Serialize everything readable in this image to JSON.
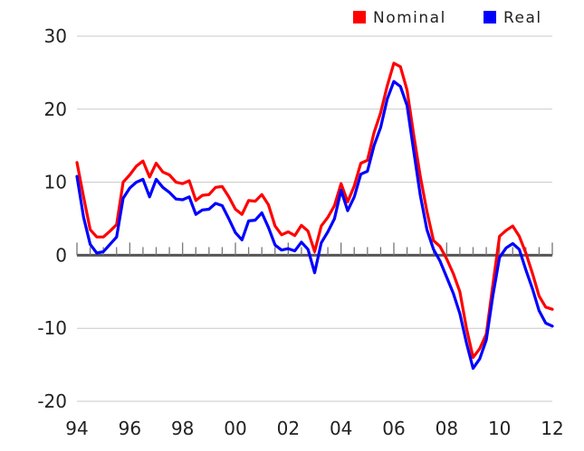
{
  "chart_data": {
    "type": "line",
    "title": "",
    "xlabel": "",
    "ylabel": "",
    "xlim": [
      1994,
      2012
    ],
    "ylim": [
      -20,
      30
    ],
    "yticks": [
      30,
      20,
      10,
      0,
      -10,
      -20
    ],
    "xticks": [
      {
        "value": 1994,
        "label": "94"
      },
      {
        "value": 1996,
        "label": "96"
      },
      {
        "value": 1998,
        "label": "98"
      },
      {
        "value": 2000,
        "label": "00"
      },
      {
        "value": 2002,
        "label": "02"
      },
      {
        "value": 2004,
        "label": "04"
      },
      {
        "value": 2006,
        "label": "06"
      },
      {
        "value": 2008,
        "label": "08"
      },
      {
        "value": 2010,
        "label": "10"
      },
      {
        "value": 2012,
        "label": "12"
      }
    ],
    "grid": "horizontal",
    "legend_position": "top-right",
    "series": [
      {
        "name": "Nominal",
        "color": "#ff0000",
        "points": [
          [
            1994.0,
            12.7
          ],
          [
            1994.25,
            8.0
          ],
          [
            1994.5,
            3.5
          ],
          [
            1994.75,
            2.5
          ],
          [
            1995.0,
            2.5
          ],
          [
            1995.25,
            3.3
          ],
          [
            1995.5,
            4.2
          ],
          [
            1995.75,
            10.0
          ],
          [
            1996.0,
            11.0
          ],
          [
            1996.25,
            12.2
          ],
          [
            1996.5,
            12.9
          ],
          [
            1996.75,
            10.7
          ],
          [
            1997.0,
            12.6
          ],
          [
            1997.25,
            11.4
          ],
          [
            1997.5,
            11.0
          ],
          [
            1997.75,
            10.0
          ],
          [
            1998.0,
            9.8
          ],
          [
            1998.25,
            10.2
          ],
          [
            1998.5,
            7.5
          ],
          [
            1998.75,
            8.2
          ],
          [
            1999.0,
            8.3
          ],
          [
            1999.25,
            9.3
          ],
          [
            1999.5,
            9.4
          ],
          [
            1999.75,
            8.0
          ],
          [
            2000.0,
            6.3
          ],
          [
            2000.25,
            5.6
          ],
          [
            2000.5,
            7.5
          ],
          [
            2000.75,
            7.4
          ],
          [
            2001.0,
            8.3
          ],
          [
            2001.25,
            6.9
          ],
          [
            2001.5,
            4.0
          ],
          [
            2001.75,
            2.8
          ],
          [
            2002.0,
            3.2
          ],
          [
            2002.25,
            2.7
          ],
          [
            2002.5,
            4.1
          ],
          [
            2002.75,
            3.3
          ],
          [
            2003.0,
            0.5
          ],
          [
            2003.25,
            4.0
          ],
          [
            2003.5,
            5.2
          ],
          [
            2003.75,
            6.8
          ],
          [
            2004.0,
            9.8
          ],
          [
            2004.25,
            7.3
          ],
          [
            2004.5,
            9.5
          ],
          [
            2004.75,
            12.6
          ],
          [
            2005.0,
            13.0
          ],
          [
            2005.25,
            16.8
          ],
          [
            2005.5,
            19.5
          ],
          [
            2005.75,
            23.2
          ],
          [
            2006.0,
            26.3
          ],
          [
            2006.25,
            25.8
          ],
          [
            2006.5,
            22.6
          ],
          [
            2006.75,
            16.5
          ],
          [
            2007.0,
            10.8
          ],
          [
            2007.25,
            6.0
          ],
          [
            2007.5,
            2.0
          ],
          [
            2007.75,
            1.2
          ],
          [
            2008.0,
            -0.5
          ],
          [
            2008.25,
            -2.5
          ],
          [
            2008.5,
            -5.0
          ],
          [
            2008.75,
            -10.0
          ],
          [
            2009.0,
            -14.0
          ],
          [
            2009.25,
            -12.8
          ],
          [
            2009.5,
            -10.8
          ],
          [
            2009.75,
            -4.0
          ],
          [
            2010.0,
            2.6
          ],
          [
            2010.25,
            3.4
          ],
          [
            2010.5,
            4.0
          ],
          [
            2010.75,
            2.6
          ],
          [
            2011.0,
            0.3
          ],
          [
            2011.25,
            -2.5
          ],
          [
            2011.5,
            -5.6
          ],
          [
            2011.75,
            -7.1
          ],
          [
            2012.0,
            -7.4
          ]
        ]
      },
      {
        "name": "Real",
        "color": "#0000ff",
        "points": [
          [
            1994.0,
            10.8
          ],
          [
            1994.25,
            5.2
          ],
          [
            1994.5,
            1.5
          ],
          [
            1994.75,
            0.3
          ],
          [
            1995.0,
            0.5
          ],
          [
            1995.25,
            1.5
          ],
          [
            1995.5,
            2.5
          ],
          [
            1995.75,
            7.8
          ],
          [
            1996.0,
            9.2
          ],
          [
            1996.25,
            10.0
          ],
          [
            1996.5,
            10.4
          ],
          [
            1996.75,
            8.0
          ],
          [
            1997.0,
            10.4
          ],
          [
            1997.25,
            9.3
          ],
          [
            1997.5,
            8.6
          ],
          [
            1997.75,
            7.7
          ],
          [
            1998.0,
            7.6
          ],
          [
            1998.25,
            8.0
          ],
          [
            1998.5,
            5.6
          ],
          [
            1998.75,
            6.2
          ],
          [
            1999.0,
            6.3
          ],
          [
            1999.25,
            7.1
          ],
          [
            1999.5,
            6.8
          ],
          [
            1999.75,
            5.0
          ],
          [
            2000.0,
            3.1
          ],
          [
            2000.25,
            2.1
          ],
          [
            2000.5,
            4.7
          ],
          [
            2000.75,
            4.8
          ],
          [
            2001.0,
            5.8
          ],
          [
            2001.25,
            3.8
          ],
          [
            2001.5,
            1.4
          ],
          [
            2001.75,
            0.7
          ],
          [
            2002.0,
            0.9
          ],
          [
            2002.25,
            0.6
          ],
          [
            2002.5,
            1.8
          ],
          [
            2002.75,
            0.8
          ],
          [
            2003.0,
            -2.4
          ],
          [
            2003.25,
            1.7
          ],
          [
            2003.5,
            3.2
          ],
          [
            2003.75,
            5.0
          ],
          [
            2004.0,
            8.9
          ],
          [
            2004.25,
            6.1
          ],
          [
            2004.5,
            8.0
          ],
          [
            2004.75,
            11.1
          ],
          [
            2005.0,
            11.5
          ],
          [
            2005.25,
            15.0
          ],
          [
            2005.5,
            17.5
          ],
          [
            2005.75,
            21.4
          ],
          [
            2006.0,
            23.8
          ],
          [
            2006.25,
            23.1
          ],
          [
            2006.5,
            20.5
          ],
          [
            2006.75,
            14.3
          ],
          [
            2007.0,
            8.2
          ],
          [
            2007.25,
            3.5
          ],
          [
            2007.5,
            0.8
          ],
          [
            2007.75,
            -0.8
          ],
          [
            2008.0,
            -3.0
          ],
          [
            2008.25,
            -5.2
          ],
          [
            2008.5,
            -8.0
          ],
          [
            2008.75,
            -12.0
          ],
          [
            2009.0,
            -15.5
          ],
          [
            2009.25,
            -14.2
          ],
          [
            2009.5,
            -11.6
          ],
          [
            2009.75,
            -5.5
          ],
          [
            2010.0,
            -0.3
          ],
          [
            2010.25,
            1.0
          ],
          [
            2010.5,
            1.6
          ],
          [
            2010.75,
            0.8
          ],
          [
            2011.0,
            -2.0
          ],
          [
            2011.25,
            -4.6
          ],
          [
            2011.5,
            -7.6
          ],
          [
            2011.75,
            -9.3
          ],
          [
            2012.0,
            -9.7
          ]
        ]
      }
    ]
  }
}
